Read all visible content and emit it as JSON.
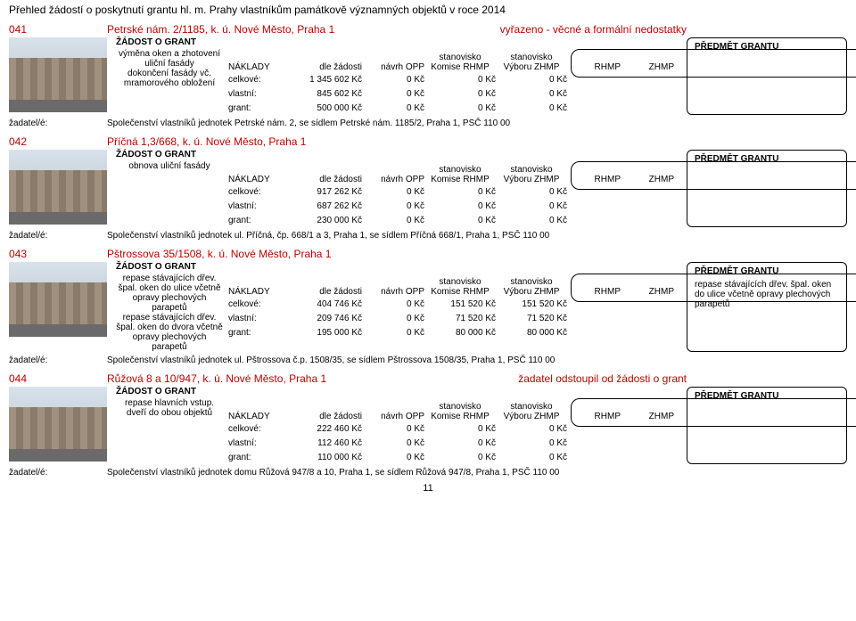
{
  "page_title": "Přehled žádostí o poskytnutí grantu hl. m. Prahy vlastníkům památkově významných objektů v roce 2014",
  "page_number": "11",
  "headers": {
    "request": "ŽÁDOST O GRANT",
    "naklady": "NÁKLADY",
    "dle": "dle žádosti",
    "navrh": "návrh OPP",
    "komise_top": "stanovisko",
    "komise_bot": "Komise RHMP",
    "vyboru_top": "stanovisko",
    "vyboru_bot": "Výboru ZHMP",
    "rhmp": "RHMP",
    "zhmp": "ZHMP",
    "predmet": "PŘEDMĚT GRANTU",
    "celkove": "celkové:",
    "vlastni": "vlastní:",
    "grant": "grant:",
    "zadatel": "žadatel/é:"
  },
  "entries": [
    {
      "id": "041",
      "addr": "Petrské nám. 2/1185, k. ú. Nové Město, Praha 1",
      "status": "vyřazeno - věcné a formální nedostatky",
      "desc": "výměna oken a zhotovení uliční fasády\ndokončení fasády vč. mramorového obložení",
      "rows": [
        [
          "1 345 602 Kč",
          "0 Kč",
          "0 Kč",
          "0 Kč"
        ],
        [
          "845 602 Kč",
          "0 Kč",
          "0 Kč",
          "0 Kč"
        ],
        [
          "500 000 Kč",
          "0 Kč",
          "0 Kč",
          "0 Kč"
        ]
      ],
      "predmet": "",
      "applicant": "Společenství vlastníků jednotek Petrské nám. 2, se sídlem Petrské nám. 1185/2, Praha 1, PSČ 110 00"
    },
    {
      "id": "042",
      "addr": "Příčná 1,3/668, k. ú. Nové Město, Praha 1",
      "status": "",
      "desc": "obnova uliční fasády",
      "rows": [
        [
          "917 262 Kč",
          "0 Kč",
          "0 Kč",
          "0 Kč"
        ],
        [
          "687 262 Kč",
          "0 Kč",
          "0 Kč",
          "0 Kč"
        ],
        [
          "230 000 Kč",
          "0 Kč",
          "0 Kč",
          "0 Kč"
        ]
      ],
      "predmet": "",
      "applicant": "Společenství vlastníků jednotek ul. Příčná, čp. 668/1 a 3, Praha 1, se sídlem Příčná 668/1, Praha 1, PSČ 110 00"
    },
    {
      "id": "043",
      "addr": "Pštrossova 35/1508, k. ú. Nové Město, Praha 1",
      "status": "",
      "desc": "repase stávajících dřev. špal. oken do ulice včetně opravy plechových parapetů\nrepase stávajících dřev. špal. oken do dvora včetně opravy plechových parapetů",
      "rows": [
        [
          "404 746 Kč",
          "0 Kč",
          "151 520 Kč",
          "151 520 Kč"
        ],
        [
          "209 746 Kč",
          "0 Kč",
          "71 520 Kč",
          "71 520 Kč"
        ],
        [
          "195 000 Kč",
          "0 Kč",
          "80 000 Kč",
          "80 000 Kč"
        ]
      ],
      "predmet": "repase stávajících dřev. špal. oken do ulice včetně opravy plechových parapetů",
      "applicant": "Společenství vlastníků jednotek ul. Pštrossova č.p. 1508/35, se sídlem Pštrossova 1508/35, Praha 1, PSČ 110 00"
    },
    {
      "id": "044",
      "addr": "Růžová 8 a 10/947, k. ú. Nové Město, Praha 1",
      "status": "žadatel odstoupil od žádosti o grant",
      "desc": "repase hlavních vstup. dveří do obou objektů",
      "rows": [
        [
          "222 460 Kč",
          "0 Kč",
          "0 Kč",
          "0 Kč"
        ],
        [
          "112 460 Kč",
          "0 Kč",
          "0 Kč",
          "0 Kč"
        ],
        [
          "110 000 Kč",
          "0 Kč",
          "0 Kč",
          "0 Kč"
        ]
      ],
      "predmet": "",
      "applicant": "Společenství vlastníků jednotek domu Růžová 947/8 a 10, Praha 1, se sídlem Růžová 947/8, Praha 1, PSČ 110 00"
    }
  ]
}
